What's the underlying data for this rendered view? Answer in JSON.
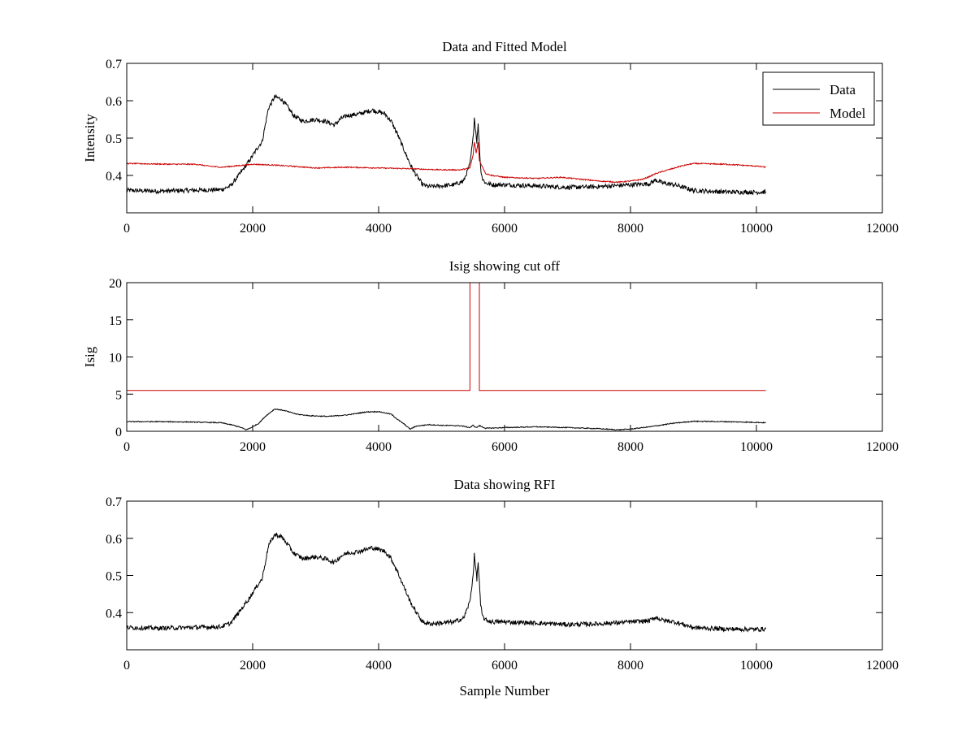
{
  "figure": {
    "background": "#ffffff"
  },
  "chart_data": [
    {
      "type": "line",
      "title": "Data and Fitted Model",
      "xlabel": "",
      "ylabel": "Intensity",
      "xlim": [
        0,
        12000
      ],
      "ylim": [
        0.3,
        0.7
      ],
      "xticks": [
        0,
        2000,
        4000,
        6000,
        8000,
        10000,
        12000
      ],
      "xtick_labels": [
        "0",
        "2000",
        "4000",
        "6000",
        "8000",
        "10000",
        "12000"
      ],
      "yticks": [
        0.4,
        0.5,
        0.6,
        0.7
      ],
      "ytick_labels": [
        "0.4",
        "0.5",
        "0.6",
        "0.7"
      ],
      "legend": {
        "position": "top-right",
        "entries": [
          "Data",
          "Model"
        ]
      },
      "series": [
        {
          "name": "Data",
          "color": "#000000",
          "noise": 0.006,
          "x": [
            0,
            500,
            1000,
            1500,
            1650,
            1800,
            1950,
            2100,
            2150,
            2250,
            2350,
            2450,
            2550,
            2650,
            2800,
            3000,
            3150,
            3300,
            3400,
            3500,
            3700,
            3900,
            4100,
            4200,
            4300,
            4400,
            4500,
            4600,
            4700,
            4800,
            5000,
            5200,
            5350,
            5450,
            5500,
            5520,
            5560,
            5580,
            5600,
            5620,
            5650,
            5700,
            5800,
            6000,
            6500,
            7000,
            7500,
            8000,
            8300,
            8400,
            8500,
            8700,
            8900,
            9000,
            9200,
            9500,
            10000,
            10150
          ],
          "y": [
            0.36,
            0.358,
            0.36,
            0.362,
            0.372,
            0.405,
            0.44,
            0.48,
            0.49,
            0.58,
            0.61,
            0.605,
            0.585,
            0.56,
            0.545,
            0.55,
            0.545,
            0.535,
            0.552,
            0.56,
            0.565,
            0.575,
            0.565,
            0.545,
            0.51,
            0.47,
            0.43,
            0.4,
            0.375,
            0.37,
            0.372,
            0.375,
            0.385,
            0.43,
            0.5,
            0.555,
            0.49,
            0.535,
            0.48,
            0.42,
            0.39,
            0.38,
            0.375,
            0.375,
            0.372,
            0.368,
            0.37,
            0.375,
            0.378,
            0.388,
            0.38,
            0.375,
            0.365,
            0.36,
            0.358,
            0.356,
            0.355,
            0.356
          ]
        },
        {
          "name": "Model",
          "color": "#cc0000",
          "noise": 0.0015,
          "x": [
            0,
            700,
            1100,
            1300,
            1500,
            1700,
            2000,
            2300,
            2600,
            3000,
            3500,
            4000,
            4500,
            5000,
            5300,
            5450,
            5500,
            5520,
            5550,
            5580,
            5600,
            5700,
            5800,
            6000,
            6500,
            6900,
            7200,
            7500,
            7800,
            8000,
            8200,
            8300,
            8400,
            8600,
            8800,
            9000,
            9500,
            10000,
            10150
          ],
          "y": [
            0.432,
            0.43,
            0.43,
            0.425,
            0.422,
            0.425,
            0.43,
            0.428,
            0.425,
            0.42,
            0.422,
            0.42,
            0.418,
            0.415,
            0.415,
            0.42,
            0.455,
            0.49,
            0.46,
            0.49,
            0.44,
            0.405,
            0.4,
            0.395,
            0.392,
            0.395,
            0.39,
            0.385,
            0.382,
            0.385,
            0.39,
            0.397,
            0.405,
            0.415,
            0.425,
            0.432,
            0.43,
            0.425,
            0.422
          ]
        }
      ]
    },
    {
      "type": "line",
      "title": "Isig showing cut off",
      "xlabel": "",
      "ylabel": "Isig",
      "xlim": [
        0,
        12000
      ],
      "ylim": [
        0,
        20
      ],
      "xticks": [
        0,
        2000,
        4000,
        6000,
        8000,
        10000,
        12000
      ],
      "xtick_labels": [
        "0",
        "2000",
        "4000",
        "6000",
        "8000",
        "10000",
        "12000"
      ],
      "yticks": [
        0,
        5,
        10,
        15,
        20
      ],
      "ytick_labels": [
        "0",
        "5",
        "10",
        "15",
        "20"
      ],
      "series": [
        {
          "color": "#cc0000",
          "noise": 0,
          "x": [
            0,
            5450,
            5450,
            5600,
            5600,
            10150
          ],
          "y": [
            5.5,
            5.5,
            20,
            20,
            5.5,
            5.5
          ]
        },
        {
          "color": "#000000",
          "noise": 0.06,
          "x": [
            0,
            500,
            1000,
            1500,
            1700,
            1800,
            1900,
            2000,
            2100,
            2200,
            2350,
            2500,
            2700,
            2900,
            3200,
            3500,
            3800,
            4000,
            4200,
            4300,
            4400,
            4500,
            4600,
            4800,
            5000,
            5300,
            5450,
            5500,
            5550,
            5600,
            5700,
            6000,
            6500,
            7000,
            7500,
            7800,
            8000,
            8300,
            8700,
            9000,
            9500,
            10000,
            10150
          ],
          "y": [
            1.3,
            1.3,
            1.25,
            1.15,
            0.8,
            0.55,
            0.2,
            0.6,
            1.1,
            2.0,
            3.0,
            2.8,
            2.3,
            2.1,
            2.0,
            2.2,
            2.6,
            2.65,
            2.3,
            1.6,
            1.0,
            0.3,
            0.7,
            0.9,
            0.8,
            0.75,
            0.5,
            0.8,
            0.5,
            0.75,
            0.4,
            0.5,
            0.6,
            0.5,
            0.35,
            0.2,
            0.3,
            0.6,
            1.1,
            1.35,
            1.3,
            1.2,
            1.15
          ]
        }
      ]
    },
    {
      "type": "line",
      "title": "Data showing RFI",
      "xlabel": "Sample Number",
      "ylabel": "",
      "xlim": [
        0,
        12000
      ],
      "ylim": [
        0.3,
        0.7
      ],
      "xticks": [
        0,
        2000,
        4000,
        6000,
        8000,
        10000,
        12000
      ],
      "xtick_labels": [
        "0",
        "2000",
        "4000",
        "6000",
        "8000",
        "10000",
        "12000"
      ],
      "yticks": [
        0.4,
        0.5,
        0.6,
        0.7
      ],
      "ytick_labels": [
        "0.4",
        "0.5",
        "0.6",
        "0.7"
      ],
      "series": [
        {
          "color": "#000000",
          "noise": 0.006,
          "x": [
            0,
            500,
            1000,
            1500,
            1650,
            1800,
            1950,
            2100,
            2150,
            2250,
            2350,
            2450,
            2550,
            2650,
            2800,
            3000,
            3150,
            3300,
            3400,
            3500,
            3700,
            3900,
            4100,
            4200,
            4300,
            4400,
            4500,
            4600,
            4700,
            4800,
            5000,
            5200,
            5350,
            5450,
            5500,
            5520,
            5560,
            5580,
            5600,
            5620,
            5650,
            5700,
            5800,
            6000,
            6500,
            7000,
            7500,
            8000,
            8300,
            8400,
            8500,
            8700,
            8900,
            9000,
            9200,
            9500,
            10000,
            10150
          ],
          "y": [
            0.36,
            0.358,
            0.36,
            0.362,
            0.372,
            0.405,
            0.44,
            0.48,
            0.49,
            0.58,
            0.61,
            0.605,
            0.585,
            0.56,
            0.545,
            0.55,
            0.545,
            0.535,
            0.552,
            0.56,
            0.565,
            0.575,
            0.565,
            0.545,
            0.51,
            0.47,
            0.43,
            0.4,
            0.375,
            0.37,
            0.372,
            0.375,
            0.385,
            0.43,
            0.5,
            0.555,
            0.49,
            0.535,
            0.48,
            0.42,
            0.39,
            0.38,
            0.375,
            0.375,
            0.372,
            0.368,
            0.37,
            0.375,
            0.378,
            0.388,
            0.38,
            0.375,
            0.365,
            0.36,
            0.358,
            0.356,
            0.355,
            0.356
          ]
        }
      ]
    }
  ]
}
